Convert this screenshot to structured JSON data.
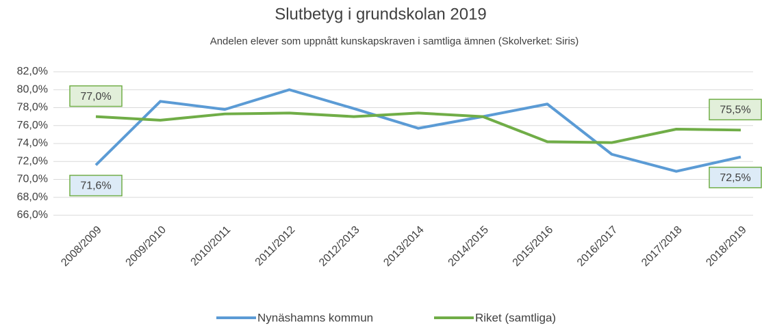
{
  "chart_data": {
    "type": "line",
    "title": "Slutbetyg i grundskolan 2019",
    "subtitle": "Andelen elever som uppnått kunskapskraven i samtliga ämnen (Skolverket: Siris)",
    "categories": [
      "2008/2009",
      "2009/2010",
      "2010/2011",
      "2011/2012",
      "2012/2013",
      "2013/2014",
      "2014/2015",
      "2015/2016",
      "2016/2017",
      "2017/2018",
      "2018/2019"
    ],
    "series": [
      {
        "name": "Nynäshamns kommun",
        "color": "#5b9bd5",
        "values": [
          71.6,
          78.7,
          77.8,
          80.0,
          77.9,
          75.7,
          77.0,
          78.4,
          72.8,
          70.9,
          72.5
        ],
        "value_labels": [
          "71,6%",
          null,
          null,
          null,
          null,
          null,
          null,
          null,
          null,
          null,
          "72,5%"
        ]
      },
      {
        "name": "Riket (samtliga)",
        "color": "#70ad47",
        "values": [
          77.0,
          76.6,
          77.3,
          77.4,
          77.0,
          77.4,
          77.0,
          74.2,
          74.1,
          75.6,
          75.5
        ],
        "value_labels": [
          "77,0%",
          null,
          null,
          null,
          null,
          null,
          null,
          null,
          null,
          null,
          "75,5%"
        ]
      }
    ],
    "ylim": [
      66,
      82
    ],
    "yticks": [
      {
        "value": 66,
        "label": "66,0%"
      },
      {
        "value": 68,
        "label": "68,0%"
      },
      {
        "value": 70,
        "label": "70,0%"
      },
      {
        "value": 72,
        "label": "72,0%"
      },
      {
        "value": 74,
        "label": "74,0%"
      },
      {
        "value": 76,
        "label": "76,0%"
      },
      {
        "value": 78,
        "label": "78,0%"
      },
      {
        "value": 80,
        "label": "80,0%"
      },
      {
        "value": 82,
        "label": "82,0%"
      }
    ],
    "grid": true,
    "legend": "bottom"
  }
}
